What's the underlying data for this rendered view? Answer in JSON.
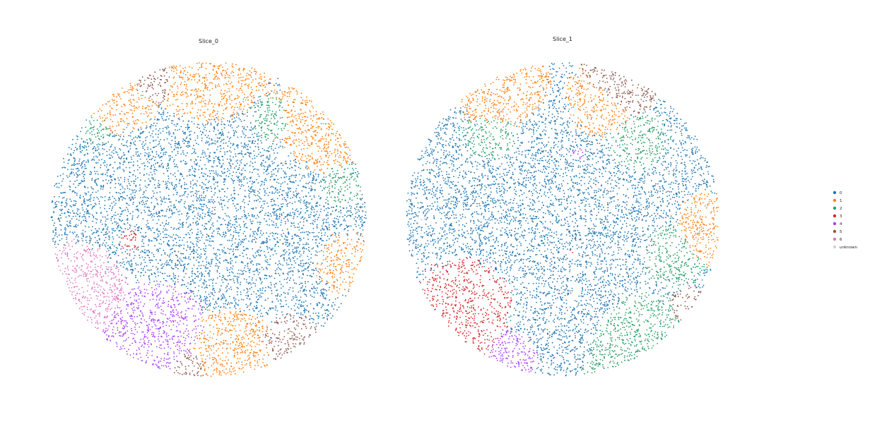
{
  "chart_data": {
    "type": "scatter",
    "legend_placement": "right",
    "grid": false,
    "axes_visible": false,
    "legend": [
      {
        "label": "0",
        "color": "#1f77b4"
      },
      {
        "label": "1",
        "color": "#ff7f0e"
      },
      {
        "label": "2",
        "color": "#279e68"
      },
      {
        "label": "3",
        "color": "#d62728"
      },
      {
        "label": "4",
        "color": "#aa40fc"
      },
      {
        "label": "5",
        "color": "#8c564b"
      },
      {
        "label": "6",
        "color": "#e377c2"
      },
      {
        "label": "unknown",
        "color": "#d3d3d3"
      }
    ],
    "panels": [
      {
        "title": "Slice_0",
        "clusters": [
          {
            "label": "0",
            "share": 0.52
          },
          {
            "label": "1",
            "share": 0.2
          },
          {
            "label": "2",
            "share": 0.05
          },
          {
            "label": "3",
            "share": 0.02
          },
          {
            "label": "4",
            "share": 0.08
          },
          {
            "label": "5",
            "share": 0.05
          },
          {
            "label": "6",
            "share": 0.08
          }
        ]
      },
      {
        "title": "Slice_1",
        "clusters": [
          {
            "label": "0",
            "share": 0.42
          },
          {
            "label": "1",
            "share": 0.12
          },
          {
            "label": "2",
            "share": 0.22
          },
          {
            "label": "3",
            "share": 0.13
          },
          {
            "label": "4",
            "share": 0.04
          },
          {
            "label": "5",
            "share": 0.07
          },
          {
            "label": "unknown",
            "share": 0.01
          }
        ]
      }
    ]
  }
}
